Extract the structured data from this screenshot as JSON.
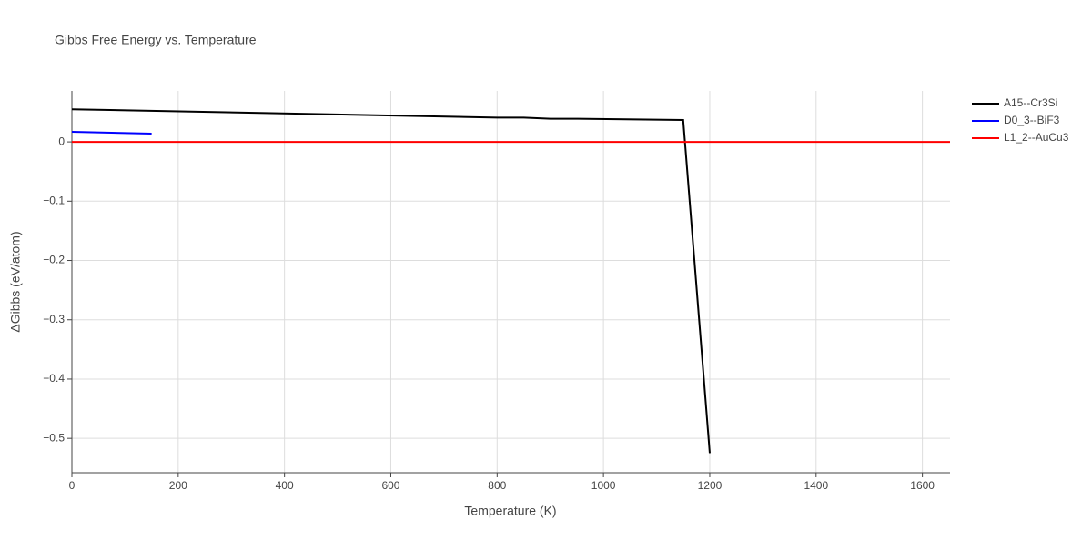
{
  "chart_data": {
    "type": "line",
    "title": "Gibbs Free Energy vs. Temperature",
    "x_label": "Temperature (K)",
    "y_label": "ΔGibbs (eV/atom)",
    "series": [
      {
        "name": "A15--Cr3Si",
        "color": "#000000",
        "x": [
          0,
          800,
          850,
          900,
          950,
          1150,
          1200
        ],
        "values": [
          0.055,
          0.041,
          0.041,
          0.039,
          0.039,
          0.037,
          -0.525
        ]
      },
      {
        "name": "D0_3--BiF3",
        "color": "#0000ff",
        "x": [
          0,
          150
        ],
        "values": [
          0.017,
          0.014
        ]
      },
      {
        "name": "L1_2--AuCu3",
        "color": "#ff0000",
        "x": [
          0,
          1652
        ],
        "values": [
          0,
          0
        ]
      }
    ],
    "xlim": [
      0,
      1652
    ],
    "ylim": [
      -0.558,
      0.086
    ],
    "xticks": [
      0,
      200,
      400,
      600,
      800,
      1000,
      1200,
      1400,
      1600
    ],
    "yticks": [
      0,
      {
        "value": -0.1,
        "label": "−0.1"
      },
      {
        "value": -0.2,
        "label": "−0.2"
      },
      {
        "value": -0.3,
        "label": "−0.3"
      },
      {
        "value": -0.4,
        "label": "−0.4"
      },
      {
        "value": -0.5,
        "label": "−0.5"
      }
    ],
    "grid": true,
    "legend": "right"
  }
}
